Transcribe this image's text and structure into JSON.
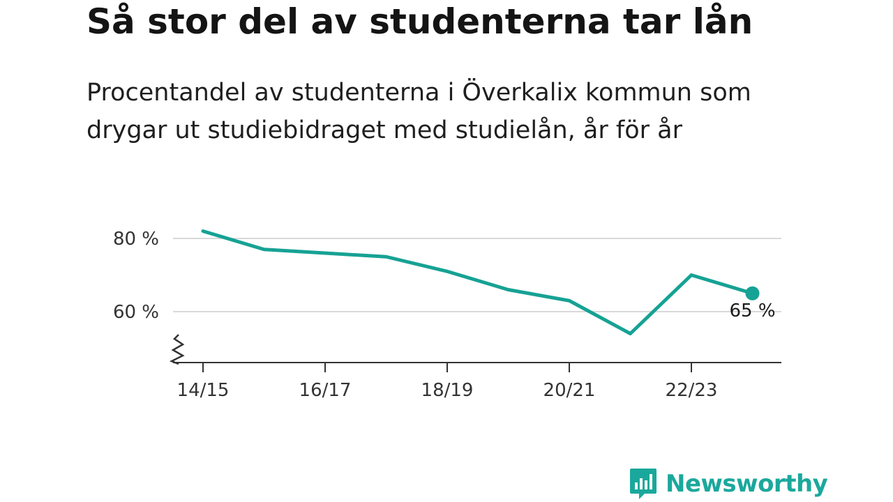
{
  "header": {
    "title": "Så stor del av studenterna tar lån",
    "subtitle": "Procentandel av studenterna i Överkalix kommun som drygar ut studiebidraget med studielån, år för år"
  },
  "brand": {
    "name": "Newsworthy",
    "color": "#1ba89c"
  },
  "chart_data": {
    "type": "line",
    "title": "Så stor del av studenterna tar lån",
    "subtitle": "Procentandel av studenterna i Överkalix kommun som drygar ut studiebidraget med studielån, år för år",
    "x": [
      "14/15",
      "15/16",
      "16/17",
      "17/18",
      "18/19",
      "19/20",
      "20/21",
      "21/22",
      "22/23",
      "23/24"
    ],
    "x_tick_labels": [
      "14/15",
      "16/17",
      "18/19",
      "20/21",
      "22/23"
    ],
    "series": [
      {
        "values": [
          82,
          77,
          76,
          75,
          71,
          66,
          63,
          54,
          70,
          65
        ]
      }
    ],
    "y_ticks": [
      60,
      80
    ],
    "y_tick_labels": [
      "60 %",
      "80 %"
    ],
    "ylim": [
      47,
      85
    ],
    "axis_break": true,
    "end_label": "65 %",
    "line_color": "#16a294",
    "grid": true
  }
}
